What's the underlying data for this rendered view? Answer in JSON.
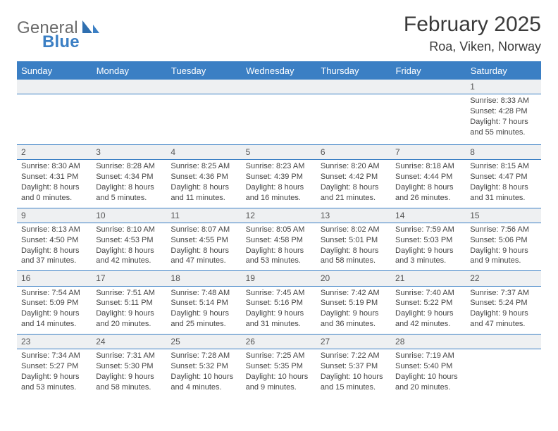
{
  "brand": {
    "general": "General",
    "blue": "Blue"
  },
  "title": "February 2025",
  "subtitle": "Roa, Viken, Norway",
  "colors": {
    "accent": "#3b7fc4",
    "header_bg": "#3b7fc4",
    "daynum_bg": "#eef0f2",
    "text": "#333333",
    "rule": "#3b7fc4"
  },
  "day_headers": [
    "Sunday",
    "Monday",
    "Tuesday",
    "Wednesday",
    "Thursday",
    "Friday",
    "Saturday"
  ],
  "weeks": [
    [
      null,
      null,
      null,
      null,
      null,
      null,
      {
        "n": "1",
        "sunrise": "Sunrise: 8:33 AM",
        "sunset": "Sunset: 4:28 PM",
        "dl1": "Daylight: 7 hours",
        "dl2": "and 55 minutes."
      }
    ],
    [
      {
        "n": "2",
        "sunrise": "Sunrise: 8:30 AM",
        "sunset": "Sunset: 4:31 PM",
        "dl1": "Daylight: 8 hours",
        "dl2": "and 0 minutes."
      },
      {
        "n": "3",
        "sunrise": "Sunrise: 8:28 AM",
        "sunset": "Sunset: 4:34 PM",
        "dl1": "Daylight: 8 hours",
        "dl2": "and 5 minutes."
      },
      {
        "n": "4",
        "sunrise": "Sunrise: 8:25 AM",
        "sunset": "Sunset: 4:36 PM",
        "dl1": "Daylight: 8 hours",
        "dl2": "and 11 minutes."
      },
      {
        "n": "5",
        "sunrise": "Sunrise: 8:23 AM",
        "sunset": "Sunset: 4:39 PM",
        "dl1": "Daylight: 8 hours",
        "dl2": "and 16 minutes."
      },
      {
        "n": "6",
        "sunrise": "Sunrise: 8:20 AM",
        "sunset": "Sunset: 4:42 PM",
        "dl1": "Daylight: 8 hours",
        "dl2": "and 21 minutes."
      },
      {
        "n": "7",
        "sunrise": "Sunrise: 8:18 AM",
        "sunset": "Sunset: 4:44 PM",
        "dl1": "Daylight: 8 hours",
        "dl2": "and 26 minutes."
      },
      {
        "n": "8",
        "sunrise": "Sunrise: 8:15 AM",
        "sunset": "Sunset: 4:47 PM",
        "dl1": "Daylight: 8 hours",
        "dl2": "and 31 minutes."
      }
    ],
    [
      {
        "n": "9",
        "sunrise": "Sunrise: 8:13 AM",
        "sunset": "Sunset: 4:50 PM",
        "dl1": "Daylight: 8 hours",
        "dl2": "and 37 minutes."
      },
      {
        "n": "10",
        "sunrise": "Sunrise: 8:10 AM",
        "sunset": "Sunset: 4:53 PM",
        "dl1": "Daylight: 8 hours",
        "dl2": "and 42 minutes."
      },
      {
        "n": "11",
        "sunrise": "Sunrise: 8:07 AM",
        "sunset": "Sunset: 4:55 PM",
        "dl1": "Daylight: 8 hours",
        "dl2": "and 47 minutes."
      },
      {
        "n": "12",
        "sunrise": "Sunrise: 8:05 AM",
        "sunset": "Sunset: 4:58 PM",
        "dl1": "Daylight: 8 hours",
        "dl2": "and 53 minutes."
      },
      {
        "n": "13",
        "sunrise": "Sunrise: 8:02 AM",
        "sunset": "Sunset: 5:01 PM",
        "dl1": "Daylight: 8 hours",
        "dl2": "and 58 minutes."
      },
      {
        "n": "14",
        "sunrise": "Sunrise: 7:59 AM",
        "sunset": "Sunset: 5:03 PM",
        "dl1": "Daylight: 9 hours",
        "dl2": "and 3 minutes."
      },
      {
        "n": "15",
        "sunrise": "Sunrise: 7:56 AM",
        "sunset": "Sunset: 5:06 PM",
        "dl1": "Daylight: 9 hours",
        "dl2": "and 9 minutes."
      }
    ],
    [
      {
        "n": "16",
        "sunrise": "Sunrise: 7:54 AM",
        "sunset": "Sunset: 5:09 PM",
        "dl1": "Daylight: 9 hours",
        "dl2": "and 14 minutes."
      },
      {
        "n": "17",
        "sunrise": "Sunrise: 7:51 AM",
        "sunset": "Sunset: 5:11 PM",
        "dl1": "Daylight: 9 hours",
        "dl2": "and 20 minutes."
      },
      {
        "n": "18",
        "sunrise": "Sunrise: 7:48 AM",
        "sunset": "Sunset: 5:14 PM",
        "dl1": "Daylight: 9 hours",
        "dl2": "and 25 minutes."
      },
      {
        "n": "19",
        "sunrise": "Sunrise: 7:45 AM",
        "sunset": "Sunset: 5:16 PM",
        "dl1": "Daylight: 9 hours",
        "dl2": "and 31 minutes."
      },
      {
        "n": "20",
        "sunrise": "Sunrise: 7:42 AM",
        "sunset": "Sunset: 5:19 PM",
        "dl1": "Daylight: 9 hours",
        "dl2": "and 36 minutes."
      },
      {
        "n": "21",
        "sunrise": "Sunrise: 7:40 AM",
        "sunset": "Sunset: 5:22 PM",
        "dl1": "Daylight: 9 hours",
        "dl2": "and 42 minutes."
      },
      {
        "n": "22",
        "sunrise": "Sunrise: 7:37 AM",
        "sunset": "Sunset: 5:24 PM",
        "dl1": "Daylight: 9 hours",
        "dl2": "and 47 minutes."
      }
    ],
    [
      {
        "n": "23",
        "sunrise": "Sunrise: 7:34 AM",
        "sunset": "Sunset: 5:27 PM",
        "dl1": "Daylight: 9 hours",
        "dl2": "and 53 minutes."
      },
      {
        "n": "24",
        "sunrise": "Sunrise: 7:31 AM",
        "sunset": "Sunset: 5:30 PM",
        "dl1": "Daylight: 9 hours",
        "dl2": "and 58 minutes."
      },
      {
        "n": "25",
        "sunrise": "Sunrise: 7:28 AM",
        "sunset": "Sunset: 5:32 PM",
        "dl1": "Daylight: 10 hours",
        "dl2": "and 4 minutes."
      },
      {
        "n": "26",
        "sunrise": "Sunrise: 7:25 AM",
        "sunset": "Sunset: 5:35 PM",
        "dl1": "Daylight: 10 hours",
        "dl2": "and 9 minutes."
      },
      {
        "n": "27",
        "sunrise": "Sunrise: 7:22 AM",
        "sunset": "Sunset: 5:37 PM",
        "dl1": "Daylight: 10 hours",
        "dl2": "and 15 minutes."
      },
      {
        "n": "28",
        "sunrise": "Sunrise: 7:19 AM",
        "sunset": "Sunset: 5:40 PM",
        "dl1": "Daylight: 10 hours",
        "dl2": "and 20 minutes."
      },
      null
    ]
  ]
}
